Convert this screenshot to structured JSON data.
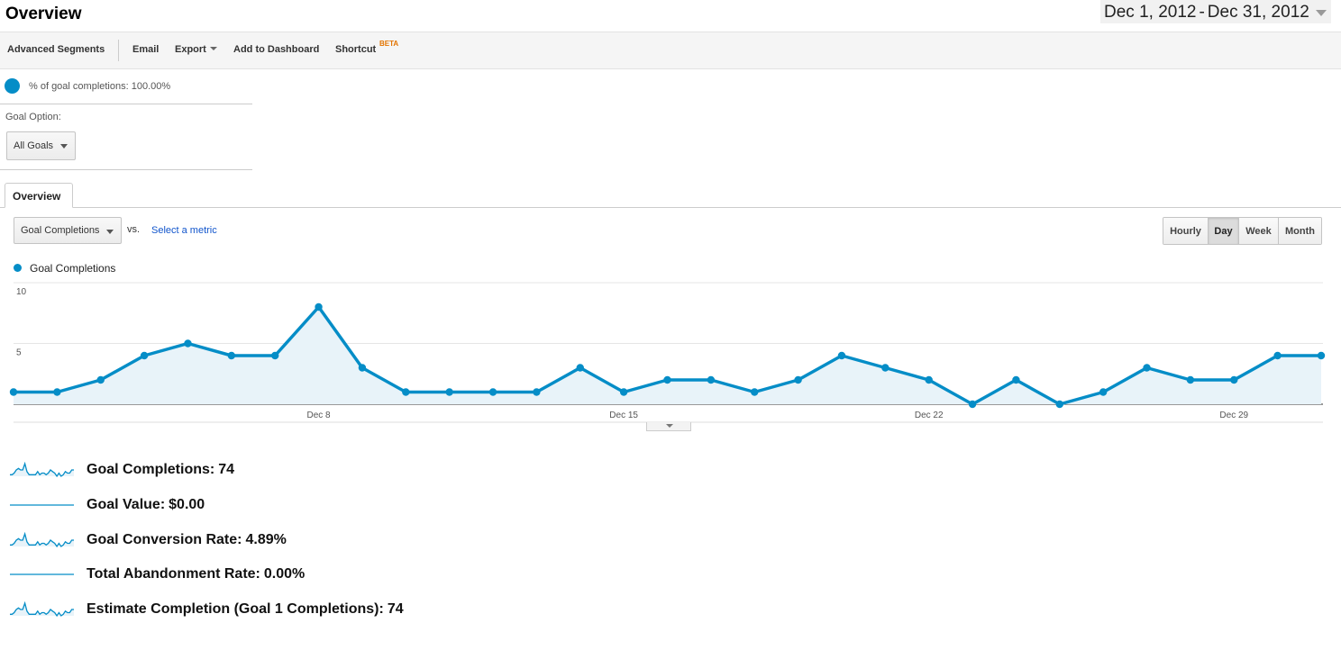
{
  "header": {
    "title": "Overview",
    "date_start": "Dec 1, 2012",
    "date_separator": "-",
    "date_end": "Dec 31, 2012"
  },
  "toolbar": {
    "advanced_segments": "Advanced Segments",
    "email": "Email",
    "export": "Export",
    "add_to_dashboard": "Add to Dashboard",
    "shortcut": "Shortcut",
    "shortcut_badge": "BETA"
  },
  "segment": {
    "text": "% of goal completions: 100.00%",
    "fraction": 1.0
  },
  "goal_option": {
    "label": "Goal Option:",
    "selected": "All Goals"
  },
  "tabs": [
    {
      "label": "Overview"
    }
  ],
  "metric_picker": {
    "selected": "Goal Completions",
    "vs_label": "vs.",
    "select_metric": "Select a metric"
  },
  "intervals": [
    {
      "label": "Hourly",
      "active": false
    },
    {
      "label": "Day",
      "active": true
    },
    {
      "label": "Week",
      "active": false
    },
    {
      "label": "Month",
      "active": false
    }
  ],
  "colors": {
    "series": "#058dc7",
    "area": "#e8f3f9"
  },
  "chart_data": {
    "type": "line",
    "series": [
      {
        "name": "Goal Completions",
        "values": [
          1,
          1,
          2,
          4,
          5,
          4,
          4,
          8,
          3,
          1,
          1,
          1,
          1,
          3,
          1,
          2,
          2,
          1,
          2,
          4,
          3,
          2,
          0,
          2,
          0,
          1,
          3,
          2,
          2,
          4,
          4
        ]
      }
    ],
    "x": [
      1,
      2,
      3,
      4,
      5,
      6,
      7,
      8,
      9,
      10,
      11,
      12,
      13,
      14,
      15,
      16,
      17,
      18,
      19,
      20,
      21,
      22,
      23,
      24,
      25,
      26,
      27,
      28,
      29,
      30,
      31
    ],
    "x_tick_labels": [
      {
        "day": 8,
        "label": "Dec 8"
      },
      {
        "day": 15,
        "label": "Dec 15"
      },
      {
        "day": 22,
        "label": "Dec 22"
      },
      {
        "day": 29,
        "label": "Dec 29"
      }
    ],
    "y_ticks": [
      {
        "value": 10,
        "label": "10"
      },
      {
        "value": 5,
        "label": "5"
      }
    ],
    "ylim": [
      0,
      10
    ],
    "grid": true
  },
  "summary": [
    {
      "label": "Goal Completions:",
      "value": "74",
      "spark": [
        1,
        1,
        2,
        4,
        5,
        4,
        4,
        8,
        3,
        1,
        1,
        1,
        1,
        3,
        1,
        2,
        2,
        1,
        2,
        4,
        3,
        2,
        0,
        2,
        0,
        1,
        3,
        2,
        2,
        4,
        4
      ]
    },
    {
      "label": "Goal Value:",
      "value": "$0.00",
      "spark": [
        0,
        0,
        0,
        0,
        0,
        0,
        0,
        0,
        0,
        0,
        0,
        0,
        0,
        0,
        0,
        0,
        0,
        0,
        0,
        0,
        0,
        0,
        0,
        0,
        0,
        0,
        0,
        0,
        0,
        0,
        0
      ]
    },
    {
      "label": "Goal Conversion Rate:",
      "value": "4.89%",
      "spark": [
        1,
        1,
        2,
        4,
        5,
        4,
        4,
        8,
        3,
        1,
        1,
        1,
        1,
        3,
        1,
        2,
        2,
        1,
        2,
        4,
        3,
        2,
        0,
        2,
        0,
        1,
        3,
        2,
        2,
        4,
        4
      ]
    },
    {
      "label": "Total Abandonment Rate:",
      "value": "0.00%",
      "spark": [
        0,
        0,
        0,
        0,
        0,
        0,
        0,
        0,
        0,
        0,
        0,
        0,
        0,
        0,
        0,
        0,
        0,
        0,
        0,
        0,
        0,
        0,
        0,
        0,
        0,
        0,
        0,
        0,
        0,
        0,
        0
      ]
    },
    {
      "label": "Estimate Completion (Goal 1 Completions):",
      "value": "74",
      "spark": [
        1,
        1,
        2,
        4,
        5,
        4,
        4,
        8,
        3,
        1,
        1,
        1,
        1,
        3,
        1,
        2,
        2,
        1,
        2,
        4,
        3,
        2,
        0,
        2,
        0,
        1,
        3,
        2,
        2,
        4,
        4
      ]
    }
  ]
}
